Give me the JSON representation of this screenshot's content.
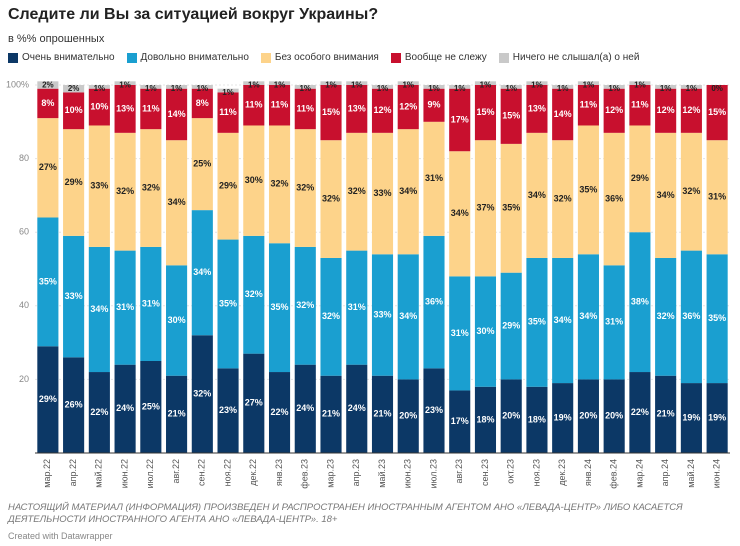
{
  "chart_data": {
    "type": "stacked-bar",
    "title": "Следите ли Вы за ситуацией вокруг Украины?",
    "subtitle": "в %% опрошенных",
    "categories": [
      "мар.22",
      "апр.22",
      "май.22",
      "июн.22",
      "июл.22",
      "авг.22",
      "сен.22",
      "ноя.22",
      "дек.22",
      "янв.23",
      "фев.23",
      "мар.23",
      "апр.23",
      "май.23",
      "июн.23",
      "июл.23",
      "авг.23",
      "сен.23",
      "окт.23",
      "ноя.23",
      "дек.23",
      "янв.24",
      "фев.24",
      "мар.24",
      "апр.24",
      "май.24",
      "июн.24"
    ],
    "series": [
      {
        "name": "Очень внимательно",
        "color": "#0c3866",
        "values": [
          29,
          26,
          22,
          24,
          25,
          21,
          32,
          23,
          27,
          22,
          24,
          21,
          24,
          21,
          20,
          23,
          17,
          18,
          20,
          18,
          19,
          20,
          20,
          22,
          21,
          19,
          19
        ],
        "value_labels": [
          "29%",
          "26%",
          "22%",
          "24%",
          "25%",
          "21%",
          "32%",
          "23%",
          "27%",
          "22%",
          "24%",
          "21%",
          "24%",
          "21%",
          "20%",
          "23%",
          "17%",
          "18%",
          "20%",
          "18%",
          "19%",
          "20%",
          "20%",
          "22%",
          "21%",
          "19%",
          "19%"
        ]
      },
      {
        "name": "Довольно внимательно",
        "color": "#1a9fd0",
        "values": [
          35,
          33,
          34,
          31,
          31,
          30,
          34,
          35,
          32,
          35,
          32,
          32,
          31,
          33,
          34,
          36,
          31,
          30,
          29,
          35,
          34,
          34,
          31,
          38,
          32,
          36,
          35
        ],
        "value_labels": [
          "35%",
          "33%",
          "34%",
          "31%",
          "31%",
          "30%",
          "34%",
          "35%",
          "32%",
          "35%",
          "32%",
          "32%",
          "31%",
          "33%",
          "34%",
          "36%",
          "31%",
          "30%",
          "29%",
          "35%",
          "34%",
          "34%",
          "31%",
          "38%",
          "32%",
          "36%",
          "35%"
        ]
      },
      {
        "name": "Без особого внимания",
        "color": "#fdd38a",
        "values": [
          27,
          29,
          33,
          32,
          32,
          34,
          25,
          29,
          30,
          32,
          32,
          32,
          32,
          33,
          34,
          31,
          34,
          37,
          35,
          34,
          32,
          35,
          36,
          29,
          34,
          32,
          31
        ],
        "value_labels": [
          "27%",
          "29%",
          "33%",
          "32%",
          "32%",
          "34%",
          "25%",
          "29%",
          "30%",
          "32%",
          "32%",
          "32%",
          "32%",
          "33%",
          "34%",
          "31%",
          "34%",
          "37%",
          "35%",
          "34%",
          "32%",
          "35%",
          "36%",
          "29%",
          "34%",
          "32%",
          "31%"
        ]
      },
      {
        "name": "Вообще не слежу",
        "color": "#c8102e",
        "values": [
          8,
          10,
          10,
          13,
          11,
          14,
          8,
          11,
          11,
          11,
          11,
          15,
          13,
          12,
          12,
          9,
          17,
          15,
          15,
          13,
          14,
          11,
          12,
          11,
          12,
          12,
          15
        ],
        "value_labels": [
          "8%",
          "10%",
          "10%",
          "13%",
          "11%",
          "14%",
          "8%",
          "11%",
          "11%",
          "11%",
          "11%",
          "15%",
          "13%",
          "12%",
          "12%",
          "9%",
          "17%",
          "15%",
          "15%",
          "13%",
          "14%",
          "11%",
          "12%",
          "11%",
          "12%",
          "12%",
          "15%"
        ]
      },
      {
        "name": "Ничего не слышал(а) о ней",
        "color": "#c9c9c9",
        "values": [
          2,
          2,
          1,
          1,
          1,
          1,
          1,
          1,
          1,
          1,
          1,
          1,
          1,
          1,
          1,
          1,
          1,
          1,
          1,
          1,
          1,
          1,
          1,
          1,
          1,
          1,
          0
        ],
        "value_labels": [
          "2%",
          "2%",
          "1%",
          "1%",
          "1%",
          "1%",
          "1%",
          "1%",
          "1%",
          "1%",
          "1%",
          "1%",
          "1%",
          "1%",
          "1%",
          "1%",
          "1%",
          "1%",
          "1%",
          "1%",
          "1%",
          "1%",
          "1%",
          "1%",
          "1%",
          "1%",
          "0%"
        ]
      }
    ],
    "ylim": [
      0,
      100
    ],
    "yticks": [
      20,
      40,
      60,
      80,
      {
        "value": 100,
        "label": "100%"
      }
    ],
    "grid": true,
    "footnote": "НАСТОЯЩИЙ МАТЕРИАЛ (ИНФОРМАЦИЯ) ПРОИЗВЕДЕН И РАСПРОСТРАНЕН ИНОСТРАННЫМ АГЕНТОМ АНО «ЛЕВАДА-ЦЕНТР» ЛИБО КАСАЕТСЯ ДЕЯТЕЛЬНОСТИ ИНОСТРАННОГО АГЕНТА АНО «ЛЕВАДА-ЦЕНТР». 18+",
    "credit": "Created with Datawrapper"
  }
}
